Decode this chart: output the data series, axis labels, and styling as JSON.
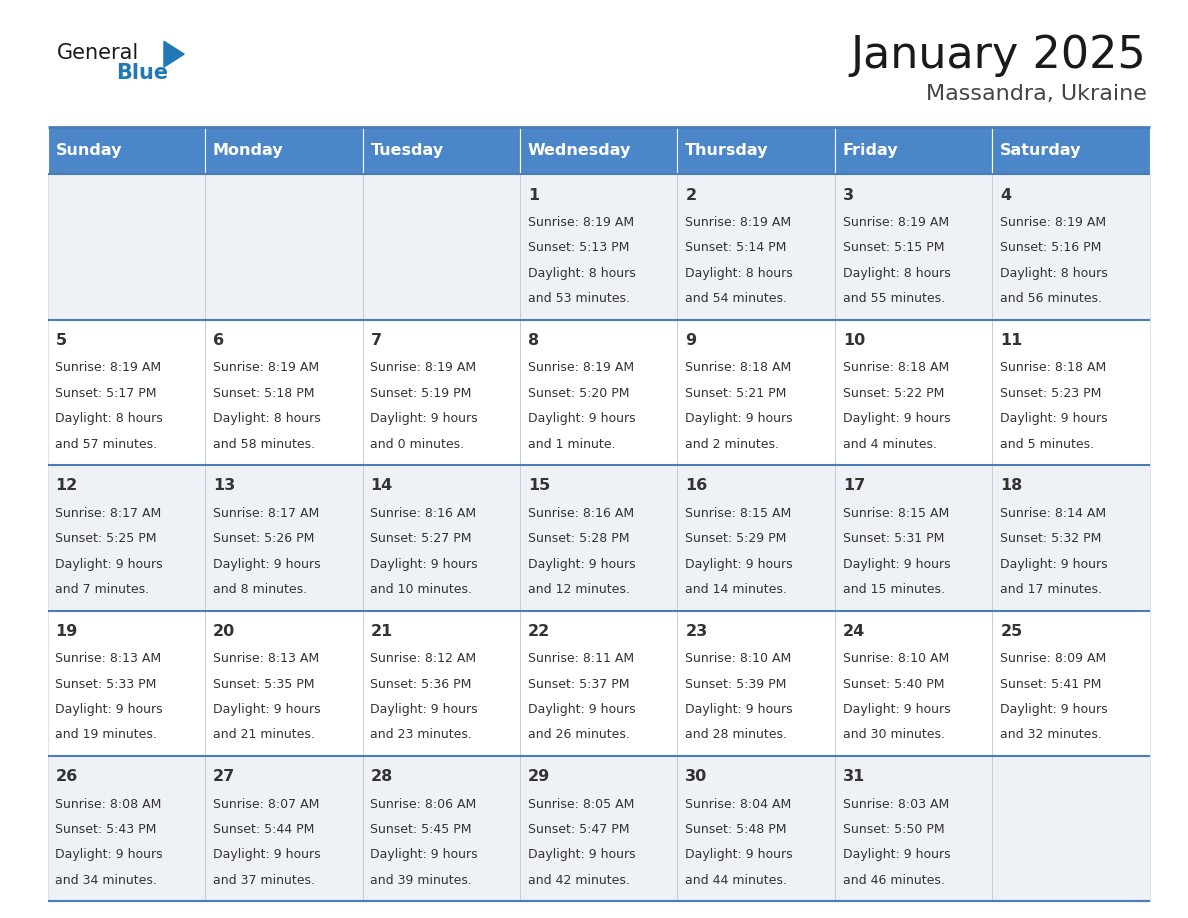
{
  "title": "January 2025",
  "subtitle": "Massandra, Ukraine",
  "days_of_week": [
    "Sunday",
    "Monday",
    "Tuesday",
    "Wednesday",
    "Thursday",
    "Friday",
    "Saturday"
  ],
  "header_bg": "#4a86c8",
  "header_text": "#ffffff",
  "cell_bg_light": "#eef2f7",
  "cell_bg_white": "#ffffff",
  "border_color": "#4a7cb5",
  "day_num_color": "#333333",
  "info_color": "#333333",
  "logo_general_color": "#1a1a1a",
  "logo_blue_color": "#2278b5",
  "title_color": "#1a1a1a",
  "subtitle_color": "#444444",
  "calendar_data": [
    [
      null,
      null,
      null,
      {
        "day": 1,
        "sunrise": "8:19 AM",
        "sunset": "5:13 PM",
        "daylight": "8 hours",
        "daylight2": "and 53 minutes."
      },
      {
        "day": 2,
        "sunrise": "8:19 AM",
        "sunset": "5:14 PM",
        "daylight": "8 hours",
        "daylight2": "and 54 minutes."
      },
      {
        "day": 3,
        "sunrise": "8:19 AM",
        "sunset": "5:15 PM",
        "daylight": "8 hours",
        "daylight2": "and 55 minutes."
      },
      {
        "day": 4,
        "sunrise": "8:19 AM",
        "sunset": "5:16 PM",
        "daylight": "8 hours",
        "daylight2": "and 56 minutes."
      }
    ],
    [
      {
        "day": 5,
        "sunrise": "8:19 AM",
        "sunset": "5:17 PM",
        "daylight": "8 hours",
        "daylight2": "and 57 minutes."
      },
      {
        "day": 6,
        "sunrise": "8:19 AM",
        "sunset": "5:18 PM",
        "daylight": "8 hours",
        "daylight2": "and 58 minutes."
      },
      {
        "day": 7,
        "sunrise": "8:19 AM",
        "sunset": "5:19 PM",
        "daylight": "9 hours",
        "daylight2": "and 0 minutes."
      },
      {
        "day": 8,
        "sunrise": "8:19 AM",
        "sunset": "5:20 PM",
        "daylight": "9 hours",
        "daylight2": "and 1 minute."
      },
      {
        "day": 9,
        "sunrise": "8:18 AM",
        "sunset": "5:21 PM",
        "daylight": "9 hours",
        "daylight2": "and 2 minutes."
      },
      {
        "day": 10,
        "sunrise": "8:18 AM",
        "sunset": "5:22 PM",
        "daylight": "9 hours",
        "daylight2": "and 4 minutes."
      },
      {
        "day": 11,
        "sunrise": "8:18 AM",
        "sunset": "5:23 PM",
        "daylight": "9 hours",
        "daylight2": "and 5 minutes."
      }
    ],
    [
      {
        "day": 12,
        "sunrise": "8:17 AM",
        "sunset": "5:25 PM",
        "daylight": "9 hours",
        "daylight2": "and 7 minutes."
      },
      {
        "day": 13,
        "sunrise": "8:17 AM",
        "sunset": "5:26 PM",
        "daylight": "9 hours",
        "daylight2": "and 8 minutes."
      },
      {
        "day": 14,
        "sunrise": "8:16 AM",
        "sunset": "5:27 PM",
        "daylight": "9 hours",
        "daylight2": "and 10 minutes."
      },
      {
        "day": 15,
        "sunrise": "8:16 AM",
        "sunset": "5:28 PM",
        "daylight": "9 hours",
        "daylight2": "and 12 minutes."
      },
      {
        "day": 16,
        "sunrise": "8:15 AM",
        "sunset": "5:29 PM",
        "daylight": "9 hours",
        "daylight2": "and 14 minutes."
      },
      {
        "day": 17,
        "sunrise": "8:15 AM",
        "sunset": "5:31 PM",
        "daylight": "9 hours",
        "daylight2": "and 15 minutes."
      },
      {
        "day": 18,
        "sunrise": "8:14 AM",
        "sunset": "5:32 PM",
        "daylight": "9 hours",
        "daylight2": "and 17 minutes."
      }
    ],
    [
      {
        "day": 19,
        "sunrise": "8:13 AM",
        "sunset": "5:33 PM",
        "daylight": "9 hours",
        "daylight2": "and 19 minutes."
      },
      {
        "day": 20,
        "sunrise": "8:13 AM",
        "sunset": "5:35 PM",
        "daylight": "9 hours",
        "daylight2": "and 21 minutes."
      },
      {
        "day": 21,
        "sunrise": "8:12 AM",
        "sunset": "5:36 PM",
        "daylight": "9 hours",
        "daylight2": "and 23 minutes."
      },
      {
        "day": 22,
        "sunrise": "8:11 AM",
        "sunset": "5:37 PM",
        "daylight": "9 hours",
        "daylight2": "and 26 minutes."
      },
      {
        "day": 23,
        "sunrise": "8:10 AM",
        "sunset": "5:39 PM",
        "daylight": "9 hours",
        "daylight2": "and 28 minutes."
      },
      {
        "day": 24,
        "sunrise": "8:10 AM",
        "sunset": "5:40 PM",
        "daylight": "9 hours",
        "daylight2": "and 30 minutes."
      },
      {
        "day": 25,
        "sunrise": "8:09 AM",
        "sunset": "5:41 PM",
        "daylight": "9 hours",
        "daylight2": "and 32 minutes."
      }
    ],
    [
      {
        "day": 26,
        "sunrise": "8:08 AM",
        "sunset": "5:43 PM",
        "daylight": "9 hours",
        "daylight2": "and 34 minutes."
      },
      {
        "day": 27,
        "sunrise": "8:07 AM",
        "sunset": "5:44 PM",
        "daylight": "9 hours",
        "daylight2": "and 37 minutes."
      },
      {
        "day": 28,
        "sunrise": "8:06 AM",
        "sunset": "5:45 PM",
        "daylight": "9 hours",
        "daylight2": "and 39 minutes."
      },
      {
        "day": 29,
        "sunrise": "8:05 AM",
        "sunset": "5:47 PM",
        "daylight": "9 hours",
        "daylight2": "and 42 minutes."
      },
      {
        "day": 30,
        "sunrise": "8:04 AM",
        "sunset": "5:48 PM",
        "daylight": "9 hours",
        "daylight2": "and 44 minutes."
      },
      {
        "day": 31,
        "sunrise": "8:03 AM",
        "sunset": "5:50 PM",
        "daylight": "9 hours",
        "daylight2": "and 46 minutes."
      },
      null
    ]
  ],
  "fig_width": 11.88,
  "fig_height": 9.18,
  "num_weeks": 5
}
